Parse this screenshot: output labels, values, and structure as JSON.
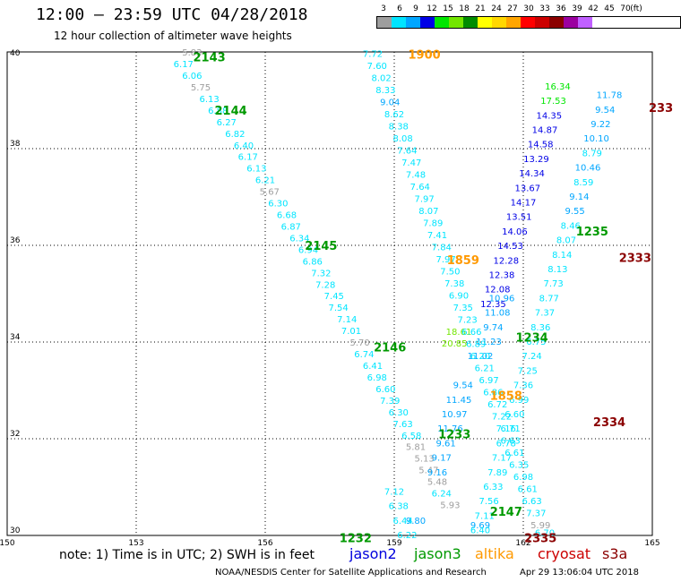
{
  "header": {
    "title": "12:00 — 23:59 UTC 04/28/2018",
    "subtitle": "12 hour collection of altimeter wave heights"
  },
  "colorbar": {
    "unit": "(ft)",
    "stops": [
      {
        "label": "3",
        "color": "#9e9e9e"
      },
      {
        "label": "6",
        "color": "#00e5ff"
      },
      {
        "label": "9",
        "color": "#00a6ff"
      },
      {
        "label": "12",
        "color": "#0000e6"
      },
      {
        "label": "15",
        "color": "#00e600"
      },
      {
        "label": "18",
        "color": "#73e600"
      },
      {
        "label": "21",
        "color": "#008c00"
      },
      {
        "label": "24",
        "color": "#ffff00"
      },
      {
        "label": "27",
        "color": "#ffd700"
      },
      {
        "label": "30",
        "color": "#ffa500"
      },
      {
        "label": "33",
        "color": "#ff0000"
      },
      {
        "label": "36",
        "color": "#cc0000"
      },
      {
        "label": "39",
        "color": "#8b0000"
      },
      {
        "label": "42",
        "color": "#9b00a0"
      },
      {
        "label": "45",
        "color": "#c060ff"
      },
      {
        "label": "70",
        "color": "#ffffff"
      }
    ]
  },
  "footer": {
    "note": "note: 1) Time is in UTC; 2) SWH is in feet",
    "satellites": [
      {
        "name": "jason2",
        "color": "#0000dd"
      },
      {
        "name": "jason3",
        "color": "#009900"
      },
      {
        "name": "altika",
        "color": "#ff9900"
      },
      {
        "name": "cryosat",
        "color": "#cc0000"
      },
      {
        "name": "s3a",
        "color": "#8b0000"
      }
    ],
    "credit": "NOAA/NESDIS Center for Satellite Applications and Research",
    "timestamp": "Apr 29 13:06:04 UTC 2018"
  },
  "chart_data": {
    "type": "scatter",
    "title": "12:00 — 23:59 UTC 04/28/2018",
    "subtitle": "12 hour collection of altimeter wave heights",
    "xlim": [
      150,
      165
    ],
    "ylim": [
      30,
      40
    ],
    "xticks": [
      "150",
      "153",
      "156",
      "159",
      "162",
      "165"
    ],
    "yticks": [
      "30",
      "32",
      "34",
      "36",
      "38",
      "40"
    ],
    "grid": true,
    "value_unit": "ft",
    "series": [
      {
        "name": "jason3",
        "color": "#009900",
        "points": [
          {
            "lon": 154.3,
            "lat": 39.98,
            "swh": "5.83"
          },
          {
            "lon": 154.1,
            "lat": 39.74,
            "swh": "6.17"
          },
          {
            "lon": 154.3,
            "lat": 39.5,
            "swh": "6.06"
          },
          {
            "lon": 154.5,
            "lat": 39.26,
            "swh": "5.75"
          },
          {
            "lon": 154.7,
            "lat": 39.02,
            "swh": "6.13"
          },
          {
            "lon": 154.9,
            "lat": 38.78,
            "swh": "6.88"
          },
          {
            "lon": 155.1,
            "lat": 38.54,
            "swh": "6.27"
          },
          {
            "lon": 155.3,
            "lat": 38.3,
            "swh": "6.82"
          },
          {
            "lon": 155.5,
            "lat": 38.06,
            "swh": "6.40"
          },
          {
            "lon": 155.6,
            "lat": 37.82,
            "swh": "6.17"
          },
          {
            "lon": 155.8,
            "lat": 37.58,
            "swh": "6.13"
          },
          {
            "lon": 156.0,
            "lat": 37.34,
            "swh": "6.21"
          },
          {
            "lon": 156.1,
            "lat": 37.1,
            "swh": "5.67"
          },
          {
            "lon": 156.3,
            "lat": 36.86,
            "swh": "6.30"
          },
          {
            "lon": 156.5,
            "lat": 36.62,
            "swh": "6.68"
          },
          {
            "lon": 156.6,
            "lat": 36.38,
            "swh": "6.87"
          },
          {
            "lon": 156.8,
            "lat": 36.14,
            "swh": "6.34"
          },
          {
            "lon": 157.0,
            "lat": 35.9,
            "swh": "6.94"
          },
          {
            "lon": 157.1,
            "lat": 35.66,
            "swh": "6.86"
          },
          {
            "lon": 157.3,
            "lat": 35.42,
            "swh": "7.32"
          },
          {
            "lon": 157.4,
            "lat": 35.18,
            "swh": "7.28"
          },
          {
            "lon": 157.6,
            "lat": 34.94,
            "swh": "7.45"
          },
          {
            "lon": 157.7,
            "lat": 34.7,
            "swh": "7.54"
          },
          {
            "lon": 157.9,
            "lat": 34.46,
            "swh": "7.14"
          },
          {
            "lon": 158.0,
            "lat": 34.22,
            "swh": "7.01"
          },
          {
            "lon": 158.2,
            "lat": 33.98,
            "swh": "5.70"
          },
          {
            "lon": 158.3,
            "lat": 33.74,
            "swh": "6.74"
          },
          {
            "lon": 158.5,
            "lat": 33.5,
            "swh": "6.41"
          },
          {
            "lon": 158.6,
            "lat": 33.26,
            "swh": "6.98"
          },
          {
            "lon": 158.8,
            "lat": 33.02,
            "swh": "6.60"
          },
          {
            "lon": 158.9,
            "lat": 32.78,
            "swh": "7.39"
          },
          {
            "lon": 159.1,
            "lat": 32.54,
            "swh": "6.30"
          },
          {
            "lon": 159.2,
            "lat": 32.3,
            "swh": "7.63"
          },
          {
            "lon": 159.4,
            "lat": 32.06,
            "swh": "6.58"
          },
          {
            "lon": 159.5,
            "lat": 31.82,
            "swh": "5.81"
          },
          {
            "lon": 159.7,
            "lat": 31.58,
            "swh": "5.13"
          },
          {
            "lon": 159.8,
            "lat": 31.34,
            "swh": "5.47"
          },
          {
            "lon": 160.0,
            "lat": 31.1,
            "swh": "5.48"
          },
          {
            "lon": 160.1,
            "lat": 30.86,
            "swh": "6.24"
          },
          {
            "lon": 160.3,
            "lat": 30.62,
            "swh": "5.93"
          }
        ]
      },
      {
        "name": "jason3",
        "color": "#009900",
        "points": [
          {
            "lon": 162.8,
            "lat": 39.28,
            "swh": "16.34"
          },
          {
            "lon": 162.7,
            "lat": 38.98,
            "swh": "17.53"
          },
          {
            "lon": 162.6,
            "lat": 38.68,
            "swh": "14.35"
          },
          {
            "lon": 162.5,
            "lat": 38.38,
            "swh": "14.87"
          },
          {
            "lon": 162.4,
            "lat": 38.08,
            "swh": "14.58"
          },
          {
            "lon": 162.3,
            "lat": 37.78,
            "swh": "13.29"
          },
          {
            "lon": 162.2,
            "lat": 37.48,
            "swh": "14.34"
          },
          {
            "lon": 162.1,
            "lat": 37.18,
            "swh": "13.67"
          },
          {
            "lon": 162.0,
            "lat": 36.88,
            "swh": "14.17"
          },
          {
            "lon": 161.9,
            "lat": 36.58,
            "swh": "13.51"
          },
          {
            "lon": 161.8,
            "lat": 36.28,
            "swh": "14.06"
          },
          {
            "lon": 161.7,
            "lat": 35.98,
            "swh": "14.53"
          },
          {
            "lon": 161.6,
            "lat": 35.68,
            "swh": "12.28"
          },
          {
            "lon": 161.5,
            "lat": 35.38,
            "swh": "12.38"
          },
          {
            "lon": 161.4,
            "lat": 35.08,
            "swh": "12.08"
          },
          {
            "lon": 161.3,
            "lat": 34.78,
            "swh": "12.35"
          },
          {
            "lon": 160.5,
            "lat": 34.2,
            "swh": "18.61"
          },
          {
            "lon": 160.4,
            "lat": 33.96,
            "swh": "20.85"
          }
        ]
      },
      {
        "name": "jason2",
        "color": "#0000dd",
        "points": [
          {
            "lon": 164.0,
            "lat": 39.1,
            "swh": "11.78"
          },
          {
            "lon": 163.9,
            "lat": 38.8,
            "swh": "9.54"
          },
          {
            "lon": 163.8,
            "lat": 38.5,
            "swh": "9.22"
          },
          {
            "lon": 163.7,
            "lat": 38.2,
            "swh": "10.10"
          },
          {
            "lon": 163.6,
            "lat": 37.9,
            "swh": "8.79"
          },
          {
            "lon": 163.5,
            "lat": 37.6,
            "swh": "10.46"
          },
          {
            "lon": 163.4,
            "lat": 37.3,
            "swh": "8.59"
          },
          {
            "lon": 163.3,
            "lat": 37.0,
            "swh": "9.14"
          },
          {
            "lon": 163.2,
            "lat": 36.7,
            "swh": "9.55"
          },
          {
            "lon": 161.5,
            "lat": 34.9,
            "swh": "10.96"
          },
          {
            "lon": 161.4,
            "lat": 34.6,
            "swh": "11.08"
          },
          {
            "lon": 161.3,
            "lat": 34.3,
            "swh": "9.74"
          },
          {
            "lon": 161.2,
            "lat": 34.0,
            "swh": "11.23"
          },
          {
            "lon": 161.0,
            "lat": 33.7,
            "swh": "11.02"
          },
          {
            "lon": 160.6,
            "lat": 33.1,
            "swh": "9.54"
          },
          {
            "lon": 160.5,
            "lat": 32.8,
            "swh": "11.45"
          },
          {
            "lon": 160.4,
            "lat": 32.5,
            "swh": "10.97"
          },
          {
            "lon": 160.3,
            "lat": 32.2,
            "swh": "11.76"
          },
          {
            "lon": 160.2,
            "lat": 31.9,
            "swh": "9.61"
          },
          {
            "lon": 160.1,
            "lat": 31.6,
            "swh": "9.17"
          },
          {
            "lon": 160.0,
            "lat": 31.3,
            "swh": "9.16"
          },
          {
            "lon": 159.5,
            "lat": 30.3,
            "swh": "9.80"
          },
          {
            "lon": 161.0,
            "lat": 30.2,
            "swh": "9.69"
          }
        ]
      },
      {
        "name": "altika",
        "color": "#ff9900",
        "points": [
          {
            "lon": 158.5,
            "lat": 39.95,
            "swh": "7.72"
          },
          {
            "lon": 158.6,
            "lat": 39.7,
            "swh": "7.60"
          },
          {
            "lon": 158.7,
            "lat": 39.45,
            "swh": "8.02"
          },
          {
            "lon": 158.8,
            "lat": 39.2,
            "swh": "8.33"
          },
          {
            "lon": 158.9,
            "lat": 38.95,
            "swh": "9.04"
          },
          {
            "lon": 159.0,
            "lat": 38.7,
            "swh": "8.62"
          },
          {
            "lon": 159.1,
            "lat": 38.45,
            "swh": "8.38"
          },
          {
            "lon": 159.2,
            "lat": 38.2,
            "swh": "8.08"
          },
          {
            "lon": 159.3,
            "lat": 37.95,
            "swh": "7.64"
          },
          {
            "lon": 159.4,
            "lat": 37.7,
            "swh": "7.47"
          },
          {
            "lon": 159.5,
            "lat": 37.45,
            "swh": "7.48"
          },
          {
            "lon": 159.6,
            "lat": 37.2,
            "swh": "7.64"
          },
          {
            "lon": 159.7,
            "lat": 36.95,
            "swh": "7.97"
          },
          {
            "lon": 159.8,
            "lat": 36.7,
            "swh": "8.07"
          },
          {
            "lon": 159.9,
            "lat": 36.45,
            "swh": "7.89"
          },
          {
            "lon": 160.0,
            "lat": 36.2,
            "swh": "7.41"
          },
          {
            "lon": 160.1,
            "lat": 35.95,
            "swh": "7.84"
          },
          {
            "lon": 160.2,
            "lat": 35.7,
            "swh": "7.97"
          },
          {
            "lon": 160.3,
            "lat": 35.45,
            "swh": "7.50"
          },
          {
            "lon": 160.4,
            "lat": 35.2,
            "swh": "7.38"
          },
          {
            "lon": 160.5,
            "lat": 34.95,
            "swh": "6.90"
          },
          {
            "lon": 160.6,
            "lat": 34.7,
            "swh": "7.35"
          },
          {
            "lon": 160.7,
            "lat": 34.45,
            "swh": "7.23"
          },
          {
            "lon": 160.8,
            "lat": 34.2,
            "swh": "6.66"
          },
          {
            "lon": 160.9,
            "lat": 33.95,
            "swh": "6.89"
          },
          {
            "lon": 161.0,
            "lat": 33.7,
            "swh": "6.20"
          },
          {
            "lon": 161.1,
            "lat": 33.45,
            "swh": "6.21"
          },
          {
            "lon": 161.2,
            "lat": 33.2,
            "swh": "6.97"
          },
          {
            "lon": 161.3,
            "lat": 32.95,
            "swh": "6.86"
          },
          {
            "lon": 161.4,
            "lat": 32.7,
            "swh": "6.72"
          },
          {
            "lon": 161.5,
            "lat": 32.45,
            "swh": "7.22"
          },
          {
            "lon": 161.6,
            "lat": 32.2,
            "swh": "7.16"
          },
          {
            "lon": 161.7,
            "lat": 31.95,
            "swh": "6.63"
          },
          {
            "lon": 161.8,
            "lat": 31.7,
            "swh": "6.61"
          },
          {
            "lon": 161.9,
            "lat": 31.45,
            "swh": "6.35"
          },
          {
            "lon": 162.0,
            "lat": 31.2,
            "swh": "6.98"
          },
          {
            "lon": 162.1,
            "lat": 30.95,
            "swh": "6.61"
          },
          {
            "lon": 162.2,
            "lat": 30.7,
            "swh": "6.63"
          },
          {
            "lon": 162.3,
            "lat": 30.45,
            "swh": "7.37"
          },
          {
            "lon": 162.4,
            "lat": 30.2,
            "swh": "5.99"
          },
          {
            "lon": 162.5,
            "lat": 30.05,
            "swh": "6.70"
          }
        ]
      },
      {
        "name": "cryosat",
        "color": "#cc0000",
        "points": [
          {
            "lon": 163.1,
            "lat": 36.4,
            "swh": "8.46"
          },
          {
            "lon": 163.0,
            "lat": 36.1,
            "swh": "8.07"
          },
          {
            "lon": 162.9,
            "lat": 35.8,
            "swh": "8.14"
          },
          {
            "lon": 162.8,
            "lat": 35.5,
            "swh": "8.13"
          },
          {
            "lon": 162.7,
            "lat": 35.2,
            "swh": "7.73"
          },
          {
            "lon": 162.6,
            "lat": 34.9,
            "swh": "8.77"
          },
          {
            "lon": 162.5,
            "lat": 34.6,
            "swh": "7.37"
          },
          {
            "lon": 162.4,
            "lat": 34.3,
            "swh": "8.36"
          },
          {
            "lon": 162.3,
            "lat": 34.0,
            "swh": "6.75"
          },
          {
            "lon": 162.2,
            "lat": 33.7,
            "swh": "7.24"
          },
          {
            "lon": 162.1,
            "lat": 33.4,
            "swh": "7.25"
          },
          {
            "lon": 162.0,
            "lat": 33.1,
            "swh": "7.36"
          },
          {
            "lon": 161.9,
            "lat": 32.8,
            "swh": "6.99"
          },
          {
            "lon": 161.8,
            "lat": 32.5,
            "swh": "6.60"
          },
          {
            "lon": 161.7,
            "lat": 32.2,
            "swh": "6.71"
          },
          {
            "lon": 161.6,
            "lat": 31.9,
            "swh": "6.78"
          },
          {
            "lon": 161.5,
            "lat": 31.6,
            "swh": "7.17"
          },
          {
            "lon": 161.4,
            "lat": 31.3,
            "swh": "7.89"
          },
          {
            "lon": 161.3,
            "lat": 31.0,
            "swh": "6.33"
          },
          {
            "lon": 161.2,
            "lat": 30.7,
            "swh": "7.56"
          },
          {
            "lon": 161.1,
            "lat": 30.4,
            "swh": "7.11"
          },
          {
            "lon": 161.0,
            "lat": 30.1,
            "swh": "6.40"
          }
        ]
      },
      {
        "name": "s3a",
        "color": "#8b0000",
        "points": [
          {
            "lon": 159.0,
            "lat": 30.9,
            "swh": "7.12"
          },
          {
            "lon": 159.1,
            "lat": 30.6,
            "swh": "6.38"
          },
          {
            "lon": 159.2,
            "lat": 30.3,
            "swh": "6.44"
          },
          {
            "lon": 159.3,
            "lat": 30.0,
            "swh": "6.22"
          }
        ]
      }
    ],
    "pass_labels": [
      {
        "text": "2143",
        "lon": 154.7,
        "lat": 39.9,
        "color": "#009900"
      },
      {
        "text": "2144",
        "lon": 155.2,
        "lat": 38.8,
        "color": "#009900"
      },
      {
        "text": "2145",
        "lon": 157.3,
        "lat": 36.0,
        "color": "#009900"
      },
      {
        "text": "2146",
        "lon": 158.9,
        "lat": 33.9,
        "color": "#009900"
      },
      {
        "text": "2147",
        "lon": 161.6,
        "lat": 30.5,
        "color": "#009900"
      },
      {
        "text": "1232",
        "lon": 158.1,
        "lat": 29.95,
        "color": "#009900"
      },
      {
        "text": "1233",
        "lon": 160.4,
        "lat": 32.1,
        "color": "#009900"
      },
      {
        "text": "1234",
        "lon": 162.2,
        "lat": 34.1,
        "color": "#009900"
      },
      {
        "text": "1235",
        "lon": 163.6,
        "lat": 36.3,
        "color": "#009900"
      },
      {
        "text": "1900",
        "lon": 159.7,
        "lat": 39.95,
        "color": "#ff9900"
      },
      {
        "text": "1859",
        "lon": 160.6,
        "lat": 35.7,
        "color": "#ff9900"
      },
      {
        "text": "1858",
        "lon": 161.6,
        "lat": 32.9,
        "color": "#ff9900"
      },
      {
        "text": "2333",
        "lon": 164.6,
        "lat": 35.75,
        "color": "#8b0000"
      },
      {
        "text": "2334",
        "lon": 164.0,
        "lat": 32.35,
        "color": "#8b0000"
      },
      {
        "text": "2335",
        "lon": 162.4,
        "lat": 29.95,
        "color": "#8b0000"
      },
      {
        "text": "233",
        "lon": 165.2,
        "lat": 38.85,
        "color": "#8b0000"
      }
    ]
  }
}
